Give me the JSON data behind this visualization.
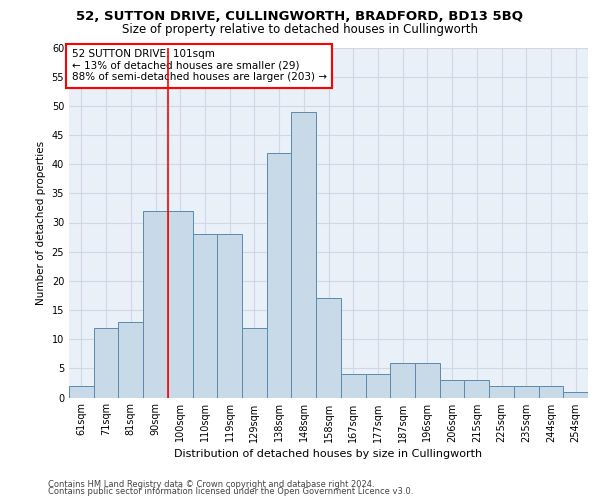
{
  "title_line1": "52, SUTTON DRIVE, CULLINGWORTH, BRADFORD, BD13 5BQ",
  "title_line2": "Size of property relative to detached houses in Cullingworth",
  "xlabel": "Distribution of detached houses by size in Cullingworth",
  "ylabel": "Number of detached properties",
  "categories": [
    "61sqm",
    "71sqm",
    "81sqm",
    "90sqm",
    "100sqm",
    "110sqm",
    "119sqm",
    "129sqm",
    "138sqm",
    "148sqm",
    "158sqm",
    "167sqm",
    "177sqm",
    "187sqm",
    "196sqm",
    "206sqm",
    "215sqm",
    "225sqm",
    "235sqm",
    "244sqm",
    "254sqm"
  ],
  "values": [
    2,
    12,
    13,
    32,
    32,
    28,
    28,
    12,
    42,
    49,
    17,
    4,
    4,
    6,
    6,
    3,
    3,
    2,
    2,
    2,
    1
  ],
  "bar_color": "#c8d9e8",
  "bar_edge_color": "#5a8ab0",
  "red_line_index": 4,
  "annotation_line1": "52 SUTTON DRIVE: 101sqm",
  "annotation_line2": "← 13% of detached houses are smaller (29)",
  "annotation_line3": "88% of semi-detached houses are larger (203) →",
  "annotation_box_color": "white",
  "annotation_box_edge_color": "red",
  "ylim": [
    0,
    60
  ],
  "yticks": [
    0,
    5,
    10,
    15,
    20,
    25,
    30,
    35,
    40,
    45,
    50,
    55,
    60
  ],
  "grid_color": "#d0d8e8",
  "background_color": "#eaf0f8",
  "footer_line1": "Contains HM Land Registry data © Crown copyright and database right 2024.",
  "footer_line2": "Contains public sector information licensed under the Open Government Licence v3.0.",
  "title_fontsize": 9.5,
  "subtitle_fontsize": 8.5,
  "xlabel_fontsize": 8,
  "ylabel_fontsize": 7.5,
  "tick_fontsize": 7,
  "annotation_fontsize": 7.5,
  "footer_fontsize": 6
}
